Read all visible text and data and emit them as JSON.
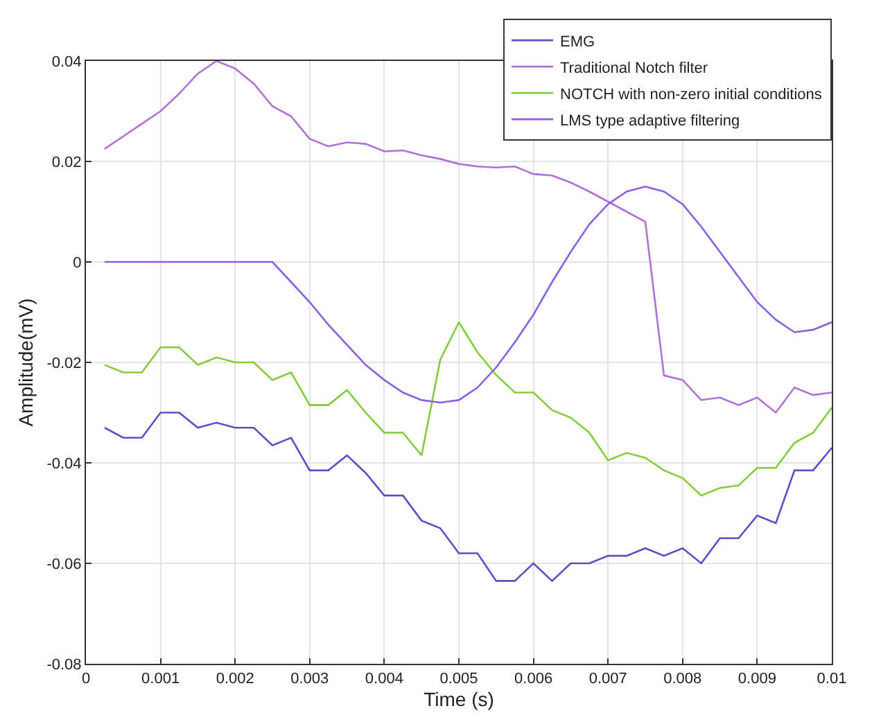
{
  "chart_data": {
    "type": "line",
    "xlabel": "Time (s)",
    "ylabel": "Amplitude(mV)",
    "x": [
      0.00025,
      0.0005,
      0.00075,
      0.001,
      0.00125,
      0.0015,
      0.00175,
      0.002,
      0.00225,
      0.0025,
      0.00275,
      0.003,
      0.00325,
      0.0035,
      0.00375,
      0.004,
      0.00425,
      0.0045,
      0.00475,
      0.005,
      0.00525,
      0.0055,
      0.00575,
      0.006,
      0.00625,
      0.0065,
      0.00675,
      0.007,
      0.00725,
      0.0075,
      0.00775,
      0.008,
      0.00825,
      0.0085,
      0.00875,
      0.009,
      0.00925,
      0.0095,
      0.00975,
      0.01
    ],
    "series": [
      {
        "name": "EMG",
        "color": "#5b4fc8",
        "values": [
          -0.033,
          -0.035,
          -0.035,
          -0.03,
          -0.03,
          -0.033,
          -0.032,
          -0.033,
          -0.033,
          -0.0365,
          -0.035,
          -0.0415,
          -0.0415,
          -0.0385,
          -0.042,
          -0.0465,
          -0.0465,
          -0.0515,
          -0.053,
          -0.058,
          -0.058,
          -0.0635,
          -0.0635,
          -0.06,
          -0.0635,
          -0.06,
          -0.06,
          -0.0585,
          -0.0585,
          -0.057,
          -0.0585,
          -0.057,
          -0.06,
          -0.055,
          -0.055,
          -0.0505,
          -0.052,
          -0.0415,
          -0.0415,
          -0.037
        ]
      },
      {
        "name": "Traditional Notch filter",
        "color": "#b070d4",
        "values": [
          0.0225,
          0.025,
          0.0275,
          0.03,
          0.0335,
          0.0375,
          0.04,
          0.0385,
          0.0355,
          0.031,
          0.029,
          0.0245,
          0.023,
          0.0238,
          0.0235,
          0.022,
          0.0222,
          0.0212,
          0.0205,
          0.0195,
          0.019,
          0.0188,
          0.019,
          0.0175,
          0.0172,
          0.0158,
          0.014,
          0.012,
          0.01,
          0.008,
          -0.0226,
          -0.0235,
          -0.0275,
          -0.027,
          -0.0285,
          -0.027,
          -0.03,
          -0.025,
          -0.0265,
          -0.026
        ]
      },
      {
        "name": "NOTCH with non-zero initial conditions",
        "color": "#84cc3c",
        "values": [
          -0.0205,
          -0.022,
          -0.022,
          -0.017,
          -0.017,
          -0.0205,
          -0.019,
          -0.02,
          -0.02,
          -0.0235,
          -0.022,
          -0.0285,
          -0.0285,
          -0.0255,
          -0.03,
          -0.034,
          -0.034,
          -0.0385,
          -0.0195,
          -0.012,
          -0.018,
          -0.0225,
          -0.026,
          -0.026,
          -0.0295,
          -0.031,
          -0.034,
          -0.0395,
          -0.038,
          -0.039,
          -0.0415,
          -0.043,
          -0.0465,
          -0.045,
          -0.0445,
          -0.041,
          -0.041,
          -0.036,
          -0.034,
          -0.029
        ]
      },
      {
        "name": "LMS type adaptive filtering",
        "color": "#8c5ee0",
        "values": [
          0,
          0,
          0,
          0,
          0,
          0,
          0,
          0,
          0,
          0,
          -0.004,
          -0.008,
          -0.0125,
          -0.0165,
          -0.0205,
          -0.0235,
          -0.026,
          -0.0275,
          -0.028,
          -0.0275,
          -0.025,
          -0.021,
          -0.016,
          -0.0105,
          -0.004,
          0.002,
          0.0075,
          0.0115,
          0.014,
          0.015,
          0.014,
          0.0115,
          0.007,
          0.002,
          -0.003,
          -0.008,
          -0.0115,
          -0.014,
          -0.0135,
          -0.012
        ]
      }
    ],
    "xlim": [
      0,
      0.01
    ],
    "xticks": [
      0,
      0.001,
      0.002,
      0.003,
      0.004,
      0.005,
      0.006,
      0.007,
      0.008,
      0.009,
      0.01
    ],
    "ylim": [
      -0.08,
      0.04
    ],
    "yticks": [
      -0.08,
      -0.06,
      -0.04,
      -0.02,
      0,
      0.02,
      0.04
    ],
    "grid": true,
    "legend": "top right",
    "marker": "none",
    "line_style": "solid"
  }
}
